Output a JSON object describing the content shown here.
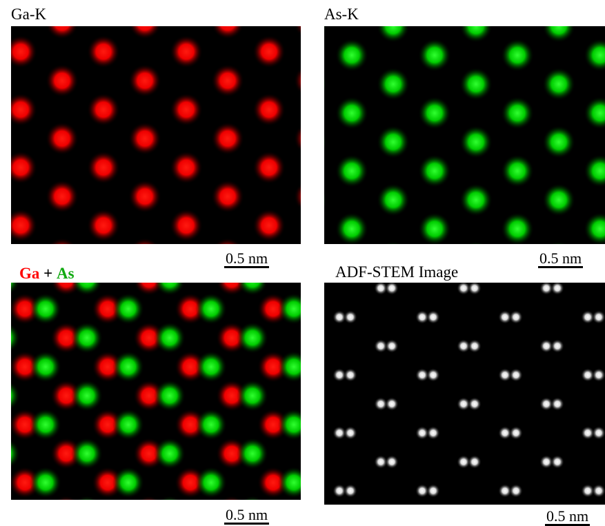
{
  "panels": [
    {
      "label": "Ga-K",
      "scale_bar": "0.5 nm"
    },
    {
      "label": "As-K",
      "scale_bar": "0.5 nm"
    },
    {
      "label_parts": [
        "Ga",
        "+",
        "As"
      ],
      "scale_bar": "0.5 nm"
    },
    {
      "label": "ADF-STEM Image",
      "scale_bar": "0.5 nm"
    }
  ]
}
